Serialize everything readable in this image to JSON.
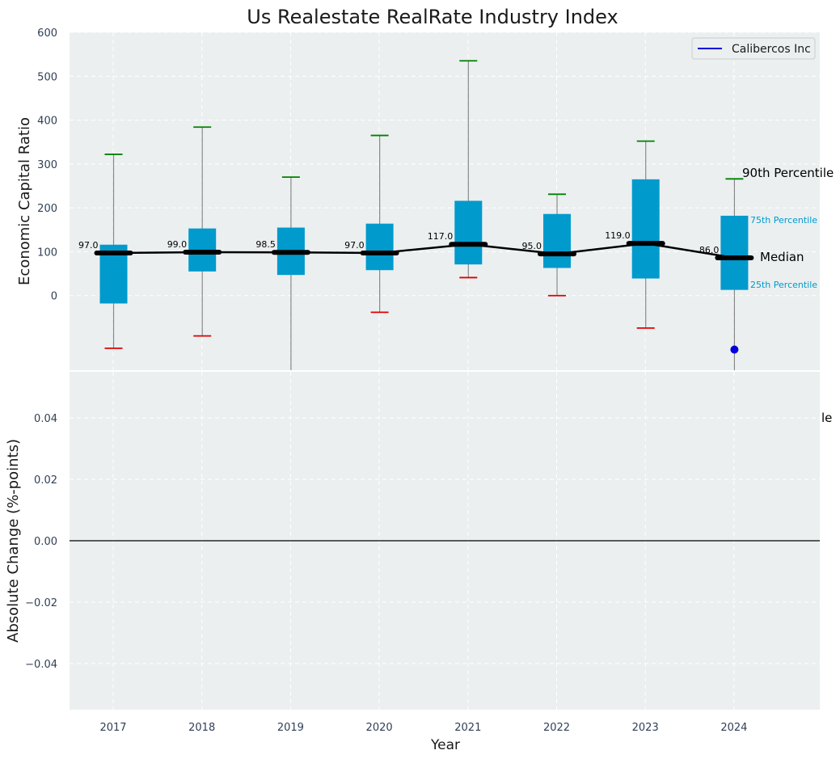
{
  "chart_data": [
    {
      "type": "box",
      "title": "Us Realestate RealRate Industry Index",
      "ylabel": "Economic Capital Ratio",
      "xlabel": "",
      "ylim": [
        -170,
        600
      ],
      "yticks": [
        0,
        100,
        200,
        300,
        400,
        500,
        600
      ],
      "grid": true,
      "legend": {
        "placement": "top-right",
        "entries": [
          "Calibercos Inc"
        ]
      },
      "categories": [
        "2017",
        "2018",
        "2019",
        "2020",
        "2021",
        "2022",
        "2023",
        "2024"
      ],
      "median_labels": [
        "97.0",
        "99.0",
        "98.5",
        "97.0",
        "117.0",
        "95.0",
        "119.0",
        "86.0"
      ],
      "boxes": [
        {
          "year": "2017",
          "p10": -120,
          "p25": -18,
          "median": 97,
          "p75": 116,
          "p90": 322,
          "whisker_low": -120,
          "whisker_high": 322
        },
        {
          "year": "2018",
          "p10": -92,
          "p25": 55,
          "median": 99,
          "p75": 153,
          "p90": 384,
          "whisker_low": -92,
          "whisker_high": 384
        },
        {
          "year": "2019",
          "p10": -170,
          "p25": 47,
          "median": 98.5,
          "p75": 155,
          "p90": 270,
          "whisker_low": -170,
          "whisker_high": 270
        },
        {
          "year": "2020",
          "p10": -38,
          "p25": 58,
          "median": 97,
          "p75": 164,
          "p90": 365,
          "whisker_low": -38,
          "whisker_high": 365
        },
        {
          "year": "2021",
          "p10": 41,
          "p25": 71,
          "median": 117,
          "p75": 216,
          "p90": 535,
          "whisker_low": 41,
          "whisker_high": 535
        },
        {
          "year": "2022",
          "p10": 0,
          "p25": 63,
          "median": 95,
          "p75": 186,
          "p90": 231,
          "whisker_low": 0,
          "whisker_high": 231
        },
        {
          "year": "2023",
          "p10": -74,
          "p25": 39,
          "median": 119,
          "p75": 265,
          "p90": 352,
          "whisker_low": -74,
          "whisker_high": 352
        },
        {
          "year": "2024",
          "p10": -170,
          "p25": 13,
          "median": 86,
          "p75": 182,
          "p90": 266,
          "whisker_low": -170,
          "whisker_high": 266
        }
      ],
      "series": [
        {
          "name": "Calibercos Inc",
          "points": [
            {
              "x": "2024",
              "y": -123
            }
          ]
        }
      ],
      "annotations": {
        "p90": "90th Percentile",
        "p75": "75th Percentile",
        "median": "Median",
        "p25": "25th Percentile"
      },
      "colors": {
        "box": "#009acd",
        "median": "#000000",
        "whisker": "#888888",
        "p90_cap": "#008000",
        "p10_cap": "#e00000",
        "company": "#0000dd",
        "panel_bg": "#ebeff0",
        "axis_text": "#2f3f55"
      }
    },
    {
      "type": "line",
      "title": "",
      "ylabel": "Absolute Change (%-points)",
      "xlabel": "Year",
      "ylim": [
        -0.055,
        0.055
      ],
      "yticks": [
        -0.04,
        -0.02,
        0.0,
        0.02,
        0.04
      ],
      "ytick_labels": [
        "−0.04",
        "−0.02",
        "0.00",
        "0.02",
        "0.04"
      ],
      "categories": [
        "2017",
        "2018",
        "2019",
        "2020",
        "2021",
        "2022",
        "2023",
        "2024"
      ],
      "zero_line": true,
      "grid": true,
      "clipped_annotation": "le"
    }
  ]
}
